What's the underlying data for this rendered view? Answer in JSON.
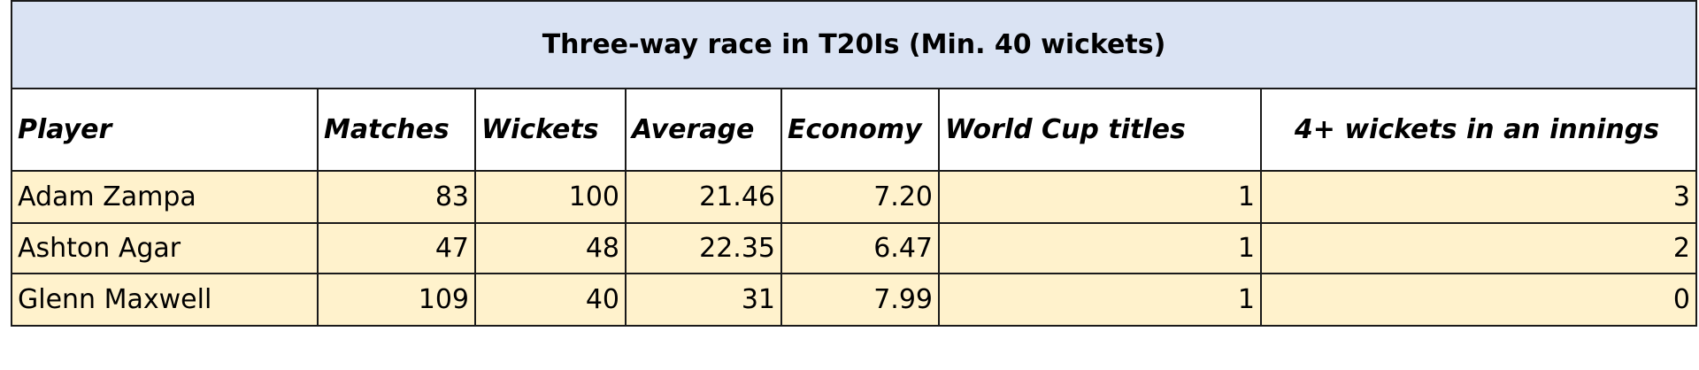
{
  "table": {
    "title": "Three-way race in T20Is (Min. 40 wickets)",
    "headers": [
      "Player",
      "Matches",
      "Wickets",
      "Average",
      "Economy",
      "World Cup titles",
      "4+ wickets in an innings"
    ],
    "rows": [
      [
        "Adam Zampa",
        "83",
        "100",
        "21.46",
        "7.20",
        "1",
        "3"
      ],
      [
        "Ashton Agar",
        "47",
        "48",
        "22.35",
        "6.47",
        "1",
        "2"
      ],
      [
        "Glenn Maxwell",
        "109",
        "40",
        "31",
        "7.99",
        "1",
        "0"
      ]
    ]
  },
  "colors": {
    "title_background": "#dae3f3",
    "data_background": "#fff2cc",
    "border": "#1a1a1a"
  }
}
